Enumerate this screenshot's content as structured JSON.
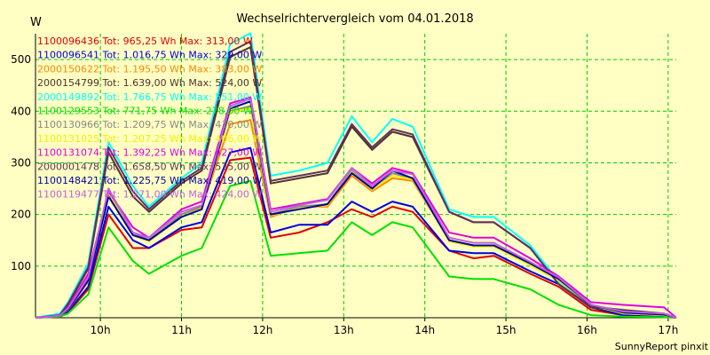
{
  "chart_data": {
    "type": "line",
    "title": "Wechselrichtervergleich vom 04.01.2018",
    "ylabel": "W",
    "xlabel": "",
    "footer": "SunnyReport pinxit",
    "ylim": [
      0,
      550
    ],
    "xlim": [
      9.2,
      17.1
    ],
    "yticks": [
      100,
      200,
      300,
      400,
      500
    ],
    "xticks": [
      10,
      11,
      12,
      13,
      14,
      15,
      16,
      17
    ],
    "xtick_labels": [
      "10h",
      "11h",
      "12h",
      "13h",
      "14h",
      "15h",
      "16h",
      "17h"
    ],
    "grid": true,
    "legend_position": "top-left",
    "x": [
      9.2,
      9.5,
      9.6,
      9.85,
      10.1,
      10.4,
      10.6,
      11.0,
      11.25,
      11.6,
      11.85,
      12.1,
      12.45,
      12.8,
      13.1,
      13.35,
      13.6,
      13.85,
      14.3,
      14.6,
      14.85,
      15.3,
      15.65,
      16.05,
      16.45,
      16.95,
      17.1
    ],
    "series": [
      {
        "name": "1100096436",
        "legend": "1100096436 Tot: 965,25 Wh Max: 313,00 W",
        "color": "#e00000",
        "values": [
          0,
          2,
          10,
          55,
          200,
          135,
          135,
          170,
          175,
          305,
          310,
          155,
          165,
          185,
          210,
          195,
          215,
          205,
          130,
          115,
          120,
          85,
          60,
          15,
          5,
          3,
          0
        ]
      },
      {
        "name": "1100096541",
        "legend": "1100096541 Tot: 1.016,75 Wh Max: 329,00 W",
        "color": "#0000e0",
        "values": [
          0,
          3,
          12,
          60,
          215,
          150,
          135,
          175,
          185,
          320,
          329,
          165,
          180,
          180,
          225,
          205,
          225,
          215,
          130,
          125,
          125,
          90,
          65,
          20,
          5,
          3,
          0
        ]
      },
      {
        "name": "2000150622",
        "legend": "2000150622 Tot: 1.195,50 Wh Max: 383,00 W",
        "color": "#ff8800",
        "values": [
          0,
          4,
          15,
          70,
          250,
          160,
          150,
          200,
          215,
          375,
          383,
          195,
          215,
          215,
          275,
          245,
          270,
          265,
          150,
          140,
          140,
          105,
          75,
          25,
          8,
          5,
          0
        ]
      },
      {
        "name": "2000154799",
        "legend": "2000154799 Tot: 1.639,00 Wh Max: 524,00 W",
        "color": "#503030",
        "values": [
          0,
          5,
          25,
          95,
          320,
          235,
          205,
          260,
          285,
          505,
          524,
          260,
          270,
          280,
          370,
          325,
          360,
          350,
          205,
          185,
          185,
          135,
          65,
          20,
          10,
          5,
          0
        ]
      },
      {
        "name": "2000149892",
        "legend": "2000149892 Tot: 1.766,75 Wh Max: 551,00 W",
        "color": "#00ffff",
        "values": [
          0,
          8,
          30,
          105,
          340,
          255,
          215,
          270,
          300,
          530,
          551,
          275,
          285,
          300,
          390,
          340,
          385,
          370,
          210,
          195,
          195,
          140,
          70,
          25,
          12,
          6,
          0
        ]
      },
      {
        "name": "1100129553",
        "legend": "1100129553 Tot: 771,75 Wh Max: 278,00 W",
        "color": "#00e000",
        "values": [
          0,
          2,
          8,
          45,
          175,
          110,
          85,
          120,
          135,
          255,
          265,
          120,
          125,
          130,
          185,
          160,
          185,
          175,
          80,
          75,
          75,
          55,
          25,
          5,
          2,
          1,
          0
        ]
      },
      {
        "name": "1100130966",
        "legend": "1100130966 Tot: 1.209,75 Wh Max: 410,00 W",
        "color": "#888888",
        "values": [
          0,
          4,
          16,
          75,
          245,
          165,
          150,
          200,
          215,
          400,
          410,
          200,
          215,
          220,
          285,
          250,
          280,
          270,
          150,
          140,
          140,
          105,
          75,
          25,
          8,
          5,
          0
        ]
      },
      {
        "name": "1100131025",
        "legend": "1100131025 Tot: 1.207,25 Wh Max: 406,00 W",
        "color": "#f0f000",
        "values": [
          0,
          4,
          16,
          72,
          240,
          160,
          148,
          195,
          212,
          398,
          406,
          198,
          212,
          218,
          282,
          248,
          275,
          268,
          148,
          138,
          138,
          102,
          72,
          24,
          8,
          5,
          0
        ]
      },
      {
        "name": "1100131074",
        "legend": "1100131074 Tot: 1.392,25 Wh Max: 427,00 W",
        "color": "#e000e0",
        "values": [
          0,
          5,
          20,
          85,
          245,
          175,
          155,
          210,
          225,
          415,
          427,
          210,
          220,
          230,
          290,
          260,
          290,
          280,
          165,
          155,
          155,
          115,
          80,
          30,
          25,
          20,
          0
        ]
      },
      {
        "name": "2000001478",
        "legend": "2000001478 Tot: 1.658,50 Wh Max: 535,00 W",
        "color": "#603060",
        "values": [
          0,
          5,
          27,
          98,
          330,
          245,
          210,
          265,
          290,
          515,
          535,
          265,
          275,
          285,
          375,
          330,
          365,
          355,
          205,
          185,
          185,
          135,
          65,
          22,
          15,
          8,
          0
        ]
      },
      {
        "name": "1100148421",
        "legend": "1100148421 Tot: 1.225,75 Wh Max: 419,00 W",
        "color": "#0000a0",
        "values": [
          0,
          4,
          16,
          72,
          235,
          160,
          150,
          195,
          210,
          405,
          419,
          200,
          210,
          220,
          280,
          250,
          285,
          270,
          150,
          140,
          140,
          105,
          75,
          25,
          10,
          6,
          0
        ]
      },
      {
        "name": "1100119477",
        "legend": "1100119477 Tot: 1.271,00 Wh Max: 424,00 W",
        "color": "#c060e0",
        "values": [
          0,
          4,
          18,
          78,
          250,
          165,
          155,
          205,
          218,
          410,
          424,
          205,
          218,
          228,
          290,
          255,
          285,
          278,
          155,
          145,
          145,
          108,
          78,
          25,
          12,
          8,
          0
        ]
      }
    ]
  }
}
